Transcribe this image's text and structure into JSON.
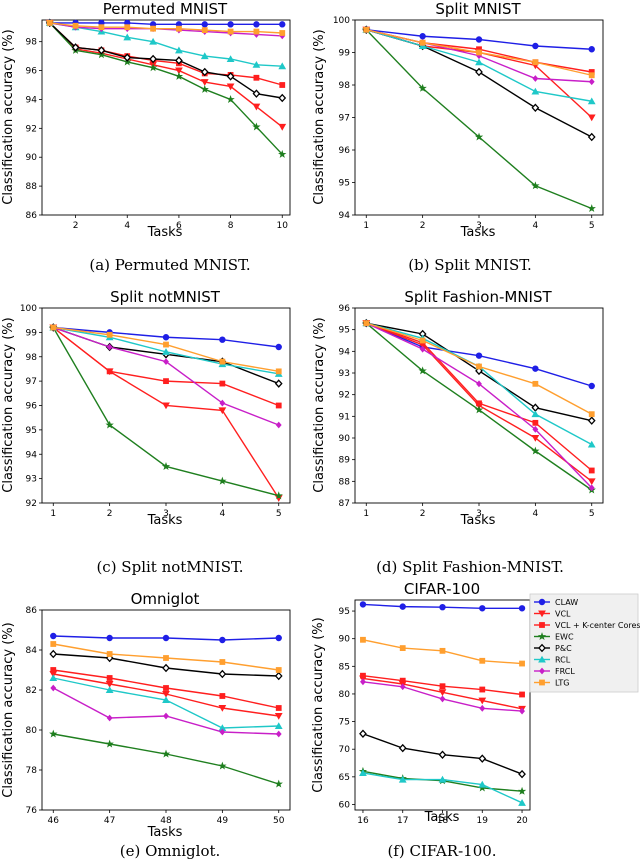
{
  "series_styles": [
    {
      "name": "CLAW",
      "color": "#1f1fe6",
      "marker": "circle"
    },
    {
      "name": "VCL",
      "color": "#ff1f1f",
      "marker": "tri-down"
    },
    {
      "name": "VCL + K-center Coreset",
      "color": "#ff1f1f",
      "marker": "square"
    },
    {
      "name": "EWC",
      "color": "#1f7f1f",
      "marker": "star"
    },
    {
      "name": "P&C",
      "color": "#000000",
      "marker": "diamond"
    },
    {
      "name": "RCL",
      "color": "#1fc8c8",
      "marker": "tri-up"
    },
    {
      "name": "FRCL",
      "color": "#c81fc8",
      "marker": "diamond-small"
    },
    {
      "name": "LTG",
      "color": "#ff9f2f",
      "marker": "square"
    }
  ],
  "chart_data": [
    {
      "type": "line",
      "title": "Permuted MNIST",
      "caption": "(a) Permuted MNIST.",
      "xlabel": "Tasks",
      "ylabel": "Classification accuracy (%)",
      "x": [
        1,
        2,
        3,
        4,
        5,
        6,
        7,
        8,
        9,
        10
      ],
      "xticks": [
        2,
        4,
        6,
        8,
        10
      ],
      "xlim": [
        0.7,
        10.3
      ],
      "yticks": [
        86,
        88,
        90,
        92,
        94,
        96,
        98
      ],
      "ylim": [
        86,
        99.5
      ],
      "series": [
        {
          "name": "CLAW",
          "values": [
            99.3,
            99.3,
            99.3,
            99.3,
            99.2,
            99.2,
            99.2,
            99.2,
            99.2,
            99.2
          ]
        },
        {
          "name": "VCL",
          "values": [
            99.3,
            97.5,
            97.2,
            96.8,
            96.4,
            96.0,
            95.2,
            94.9,
            93.5,
            92.1
          ]
        },
        {
          "name": "VCL + K-center Coreset",
          "values": [
            99.3,
            97.6,
            97.4,
            97.0,
            96.7,
            96.5,
            95.8,
            95.7,
            95.5,
            95.0
          ]
        },
        {
          "name": "EWC",
          "values": [
            99.3,
            97.4,
            97.1,
            96.6,
            96.2,
            95.6,
            94.7,
            94.0,
            92.1,
            90.2
          ]
        },
        {
          "name": "P&C",
          "values": [
            99.3,
            97.6,
            97.4,
            96.9,
            96.8,
            96.7,
            95.9,
            95.6,
            94.4,
            94.1
          ]
        },
        {
          "name": "RCL",
          "values": [
            99.3,
            99.0,
            98.7,
            98.3,
            98.0,
            97.4,
            97.0,
            96.8,
            96.4,
            96.3
          ]
        },
        {
          "name": "FRCL",
          "values": [
            99.3,
            99.0,
            98.9,
            98.9,
            98.9,
            98.8,
            98.7,
            98.6,
            98.5,
            98.4
          ]
        },
        {
          "name": "LTG",
          "values": [
            99.3,
            99.1,
            99.0,
            99.0,
            98.9,
            98.9,
            98.8,
            98.7,
            98.7,
            98.6
          ]
        }
      ]
    },
    {
      "type": "line",
      "title": "Split MNIST",
      "caption": "(b) Split MNIST.",
      "xlabel": "Tasks",
      "ylabel": "Classification accuracy (%)",
      "x": [
        1,
        2,
        3,
        4,
        5
      ],
      "xticks": [
        1,
        2,
        3,
        4,
        5
      ],
      "xlim": [
        0.8,
        5.2
      ],
      "yticks": [
        94,
        95,
        96,
        97,
        98,
        99,
        100
      ],
      "ylim": [
        94,
        100
      ],
      "series": [
        {
          "name": "CLAW",
          "values": [
            99.7,
            99.5,
            99.4,
            99.2,
            99.1
          ]
        },
        {
          "name": "VCL",
          "values": [
            99.7,
            99.2,
            99.0,
            98.6,
            97.0
          ]
        },
        {
          "name": "VCL + K-center Coreset",
          "values": [
            99.7,
            99.3,
            99.1,
            98.7,
            98.4
          ]
        },
        {
          "name": "EWC",
          "values": [
            99.7,
            97.9,
            96.4,
            94.9,
            94.2
          ]
        },
        {
          "name": "P&C",
          "values": [
            99.7,
            99.2,
            98.4,
            97.3,
            96.4
          ]
        },
        {
          "name": "RCL",
          "values": [
            99.7,
            99.2,
            98.7,
            97.8,
            97.5
          ]
        },
        {
          "name": "FRCL",
          "values": [
            99.7,
            99.3,
            98.9,
            98.2,
            98.1
          ]
        },
        {
          "name": "LTG",
          "values": [
            99.7,
            99.3,
            99.0,
            98.7,
            98.3
          ]
        }
      ]
    },
    {
      "type": "line",
      "title": "Split notMNIST",
      "caption": "(c) Split notMNIST.",
      "xlabel": "Tasks",
      "ylabel": "Classification accuracy (%)",
      "x": [
        1,
        2,
        3,
        4,
        5
      ],
      "xticks": [
        1,
        2,
        3,
        4,
        5
      ],
      "xlim": [
        0.8,
        5.2
      ],
      "yticks": [
        92,
        93,
        94,
        95,
        96,
        97,
        98,
        99,
        100
      ],
      "ylim": [
        92,
        100
      ],
      "series": [
        {
          "name": "CLAW",
          "values": [
            99.2,
            99.0,
            98.8,
            98.7,
            98.4
          ]
        },
        {
          "name": "VCL",
          "values": [
            99.2,
            97.4,
            96.0,
            95.8,
            92.2
          ]
        },
        {
          "name": "VCL + K-center Coreset",
          "values": [
            99.2,
            97.4,
            97.0,
            96.9,
            96.0
          ]
        },
        {
          "name": "EWC",
          "values": [
            99.2,
            95.2,
            93.5,
            92.9,
            92.3
          ]
        },
        {
          "name": "P&C",
          "values": [
            99.2,
            98.4,
            98.1,
            97.8,
            96.9
          ]
        },
        {
          "name": "RCL",
          "values": [
            99.2,
            98.8,
            98.2,
            97.7,
            97.3
          ]
        },
        {
          "name": "FRCL",
          "values": [
            99.2,
            98.4,
            97.8,
            96.1,
            95.2
          ]
        },
        {
          "name": "LTG",
          "values": [
            99.2,
            98.9,
            98.5,
            97.8,
            97.4
          ]
        }
      ]
    },
    {
      "type": "line",
      "title": "Split Fashion-MNIST",
      "caption": "(d) Split Fashion-MNIST.",
      "xlabel": "Tasks",
      "ylabel": "Classification accuracy (%)",
      "x": [
        1,
        2,
        3,
        4,
        5
      ],
      "xticks": [
        1,
        2,
        3,
        4,
        5
      ],
      "xlim": [
        0.8,
        5.2
      ],
      "yticks": [
        87,
        88,
        89,
        90,
        91,
        92,
        93,
        94,
        95,
        96
      ],
      "ylim": [
        87,
        96
      ],
      "series": [
        {
          "name": "CLAW",
          "values": [
            95.3,
            94.2,
            93.8,
            93.2,
            92.4
          ]
        },
        {
          "name": "VCL",
          "values": [
            95.3,
            94.3,
            91.5,
            90.0,
            88.0
          ]
        },
        {
          "name": "VCL + K-center Coreset",
          "values": [
            95.3,
            94.4,
            91.6,
            90.7,
            88.5
          ]
        },
        {
          "name": "EWC",
          "values": [
            95.3,
            93.1,
            91.3,
            89.4,
            87.6
          ]
        },
        {
          "name": "P&C",
          "values": [
            95.3,
            94.8,
            93.1,
            91.4,
            90.8
          ]
        },
        {
          "name": "RCL",
          "values": [
            95.3,
            94.6,
            93.3,
            91.1,
            89.7
          ]
        },
        {
          "name": "FRCL",
          "values": [
            95.3,
            94.1,
            92.5,
            90.4,
            87.7
          ]
        },
        {
          "name": "LTG",
          "values": [
            95.3,
            94.5,
            93.3,
            92.5,
            91.1
          ]
        }
      ]
    },
    {
      "type": "line",
      "title": "Omniglot",
      "caption": "(e) Omniglot.",
      "xlabel": "Tasks",
      "ylabel": "Classification accuracy (%)",
      "x": [
        46,
        47,
        48,
        49,
        50
      ],
      "xticks": [
        46,
        47,
        48,
        49,
        50
      ],
      "xlim": [
        45.8,
        50.2
      ],
      "yticks": [
        76,
        78,
        80,
        82,
        84,
        86
      ],
      "ylim": [
        76,
        86
      ],
      "series": [
        {
          "name": "CLAW",
          "values": [
            84.7,
            84.6,
            84.6,
            84.5,
            84.6
          ]
        },
        {
          "name": "VCL",
          "values": [
            82.8,
            82.3,
            81.8,
            81.1,
            80.7
          ]
        },
        {
          "name": "VCL + K-center Coreset",
          "values": [
            83.0,
            82.6,
            82.1,
            81.7,
            81.1
          ]
        },
        {
          "name": "EWC",
          "values": [
            79.8,
            79.3,
            78.8,
            78.2,
            77.3
          ]
        },
        {
          "name": "P&C",
          "values": [
            83.8,
            83.6,
            83.1,
            82.8,
            82.7
          ]
        },
        {
          "name": "RCL",
          "values": [
            82.6,
            82.0,
            81.5,
            80.1,
            80.2
          ]
        },
        {
          "name": "FRCL",
          "values": [
            82.1,
            80.6,
            80.7,
            79.9,
            79.8
          ]
        },
        {
          "name": "LTG",
          "values": [
            84.3,
            83.8,
            83.6,
            83.4,
            83.0
          ]
        }
      ]
    },
    {
      "type": "line",
      "title": "CIFAR-100",
      "caption": "(f) CIFAR-100.",
      "xlabel": "Tasks",
      "ylabel": "Classification accuracy (%)",
      "x": [
        16,
        17,
        18,
        19,
        20
      ],
      "xticks": [
        16,
        17,
        18,
        19,
        20
      ],
      "xlim": [
        15.8,
        20.2
      ],
      "yticks": [
        60,
        65,
        70,
        75,
        80,
        85,
        90,
        95
      ],
      "ylim": [
        59,
        97
      ],
      "series": [
        {
          "name": "CLAW",
          "values": [
            96.2,
            95.8,
            95.7,
            95.5,
            95.5
          ]
        },
        {
          "name": "VCL",
          "values": [
            82.8,
            81.8,
            80.3,
            78.8,
            77.3
          ]
        },
        {
          "name": "VCL + K-center Coreset",
          "values": [
            83.3,
            82.4,
            81.4,
            80.8,
            79.9
          ]
        },
        {
          "name": "EWC",
          "values": [
            66.0,
            64.7,
            64.3,
            63.0,
            62.4
          ]
        },
        {
          "name": "P&C",
          "values": [
            72.8,
            70.2,
            69.0,
            68.3,
            65.5
          ]
        },
        {
          "name": "RCL",
          "values": [
            65.7,
            64.5,
            64.5,
            63.6,
            60.3
          ]
        },
        {
          "name": "FRCL",
          "values": [
            82.2,
            81.3,
            79.1,
            77.4,
            76.9
          ]
        },
        {
          "name": "LTG",
          "values": [
            89.8,
            88.3,
            87.8,
            86.0,
            85.5
          ]
        }
      ],
      "legend": {
        "placement": "right",
        "entries": [
          "CLAW",
          "VCL",
          "VCL + K-center Coreset",
          "EWC",
          "P&C",
          "RCL",
          "FRCL",
          "LTG"
        ]
      }
    }
  ]
}
